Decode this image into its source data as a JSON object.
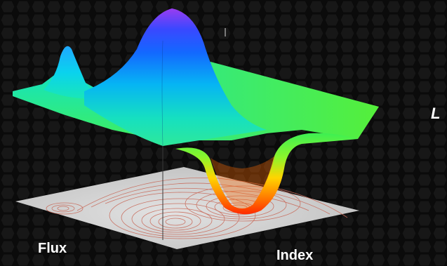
{
  "axes": {
    "x_label": "Flux",
    "y_label": "Index",
    "z_label": "L"
  },
  "colors": {
    "background": "#0b0b0b",
    "hex_pattern": "#1c1c1c",
    "floor": "#d4d4d4",
    "contour": "#c86a5a",
    "colormap": [
      "#8a2be2",
      "#1e3cff",
      "#00c8ff",
      "#2ee89a",
      "#7cff2a",
      "#ffd500",
      "#ff7a00",
      "#ff2200"
    ]
  },
  "icons": {
    "surface": "surface-plot-graphic",
    "floor": "contour-floor-graphic"
  }
}
